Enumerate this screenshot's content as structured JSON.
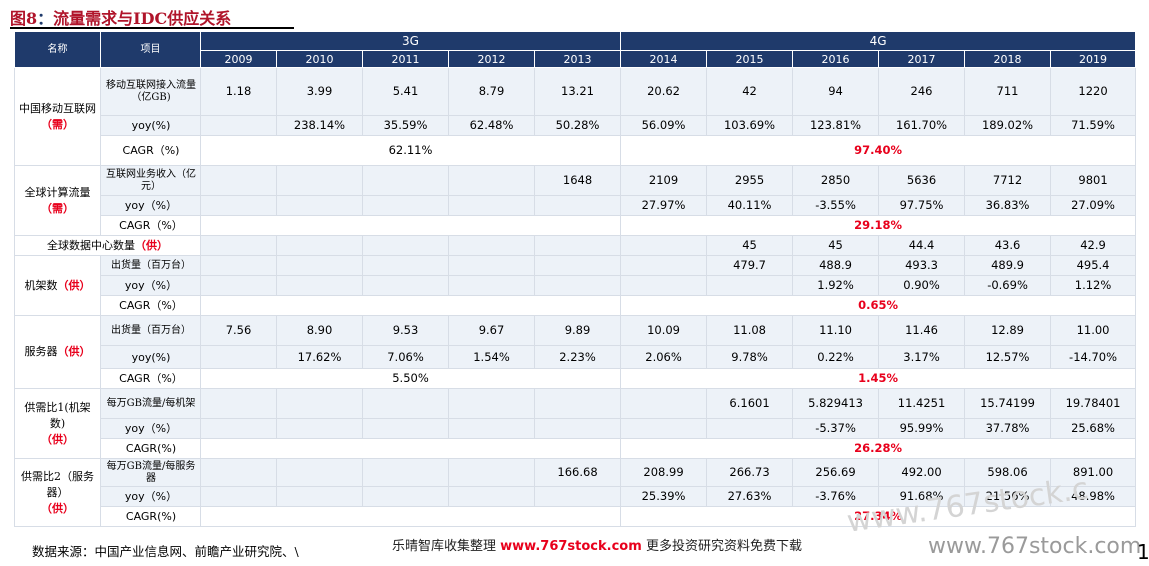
{
  "title": {
    "figure": "图8",
    "sep": "：",
    "text": "流量需求与IDC供应关系"
  },
  "header": {
    "name_col": "名称",
    "item_col": "项目",
    "group_3g": "3G",
    "group_4g": "4G",
    "years": [
      "2009",
      "2010",
      "2011",
      "2012",
      "2013",
      "2014",
      "2015",
      "2016",
      "2017",
      "2018",
      "2019"
    ]
  },
  "sections": {
    "mobile": {
      "name": "中国移动互联网",
      "tag": "（需）",
      "rows": [
        {
          "item": "移动互联网接入流量（亿GB)",
          "values": [
            "1.18",
            "3.99",
            "5.41",
            "8.79",
            "13.21",
            "20.62",
            "42",
            "94",
            "246",
            "711",
            "1220"
          ]
        },
        {
          "item": "yoy(%)",
          "values": [
            "",
            "238.14%",
            "35.59%",
            "62.48%",
            "50.28%",
            "56.09%",
            "103.69%",
            "123.81%",
            "161.70%",
            "189.02%",
            "71.59%"
          ]
        }
      ],
      "cagr": {
        "item": "CAGR（%)",
        "g3": "62.11%",
        "g4": "97.40%"
      }
    },
    "global": {
      "name": "全球计算流量",
      "tag": "（需）",
      "rows": [
        {
          "item": "互联网业务收入（亿元）",
          "values": [
            "",
            "",
            "",
            "",
            "1648",
            "2109",
            "2955",
            "2850",
            "5636",
            "7712",
            "9801"
          ]
        },
        {
          "item": "yoy（%）",
          "values": [
            "",
            "",
            "",
            "",
            "",
            "27.97%",
            "40.11%",
            "-3.55%",
            "97.75%",
            "36.83%",
            "27.09%"
          ]
        }
      ],
      "cagr": {
        "item": "CAGR（%）",
        "g3": "",
        "g4": "29.18%"
      }
    },
    "dc": {
      "name": "全球数据中心数量",
      "tag": "（供）",
      "values": [
        "",
        "",
        "",
        "",
        "",
        "",
        "45",
        "45",
        "44.4",
        "43.6",
        "42.9"
      ]
    },
    "rack": {
      "name": "机架数",
      "tag": "（供）",
      "rows": [
        {
          "item": "出货量（百万台）",
          "values": [
            "",
            "",
            "",
            "",
            "",
            "",
            "479.7",
            "488.9",
            "493.3",
            "489.9",
            "495.4"
          ]
        },
        {
          "item": "yoy（%）",
          "values": [
            "",
            "",
            "",
            "",
            "",
            "",
            "",
            "1.92%",
            "0.90%",
            "-0.69%",
            "1.12%"
          ]
        }
      ],
      "cagr": {
        "item": "CAGR（%）",
        "g3": "",
        "g4": "0.65%"
      }
    },
    "server": {
      "name": "服务器",
      "tag": "（供）",
      "rows": [
        {
          "item": "出货量（百万台）",
          "values": [
            "7.56",
            "8.90",
            "9.53",
            "9.67",
            "9.89",
            "10.09",
            "11.08",
            "11.10",
            "11.46",
            "12.89",
            "11.00"
          ]
        },
        {
          "item": "yoy(%)",
          "values": [
            "",
            "17.62%",
            "7.06%",
            "1.54%",
            "2.23%",
            "2.06%",
            "9.78%",
            "0.22%",
            "3.17%",
            "12.57%",
            "-14.70%"
          ]
        }
      ],
      "cagr": {
        "item": "CAGR（%）",
        "g3": "5.50%",
        "g4": "1.45%"
      }
    },
    "ratio1": {
      "name": "供需比1(机架数)",
      "tag": "（供）",
      "rows": [
        {
          "item": "每万GB流量/每机架",
          "values": [
            "",
            "",
            "",
            "",
            "",
            "",
            "6.1601",
            "5.829413",
            "11.4251",
            "15.74199",
            "19.78401"
          ]
        },
        {
          "item": "yoy（%）",
          "values": [
            "",
            "",
            "",
            "",
            "",
            "",
            "",
            "-5.37%",
            "95.99%",
            "37.78%",
            "25.68%"
          ]
        }
      ],
      "cagr": {
        "item": "CAGR(%)",
        "g3": "",
        "g4": "26.28%"
      }
    },
    "ratio2": {
      "name": "供需比2（服务器）",
      "tag": "（供）",
      "rows": [
        {
          "item": "每万GB流量/每服务器",
          "values": [
            "",
            "",
            "",
            "",
            "166.68",
            "208.99",
            "266.73",
            "256.69",
            "492.00",
            "598.06",
            "891.00"
          ]
        },
        {
          "item": "yoy（%）",
          "values": [
            "",
            "",
            "",
            "",
            "",
            "25.39%",
            "27.63%",
            "-3.76%",
            "91.68%",
            "21.56%",
            "48.98%"
          ]
        }
      ],
      "cagr": {
        "item": "CAGR(%)",
        "g3": "",
        "g4": "27.34%"
      }
    }
  },
  "footer": {
    "source": "数据来源：中国产业信息网、前瞻产业研究院、\\",
    "watermark_pre": "乐晴智库收集整理",
    "watermark_url": "www.767stock.com",
    "watermark_post": "更多投资研究资料免费下载",
    "watermark_big": "www.767stock.com",
    "watermark_diag": "www.767stock.c",
    "page": "1"
  }
}
